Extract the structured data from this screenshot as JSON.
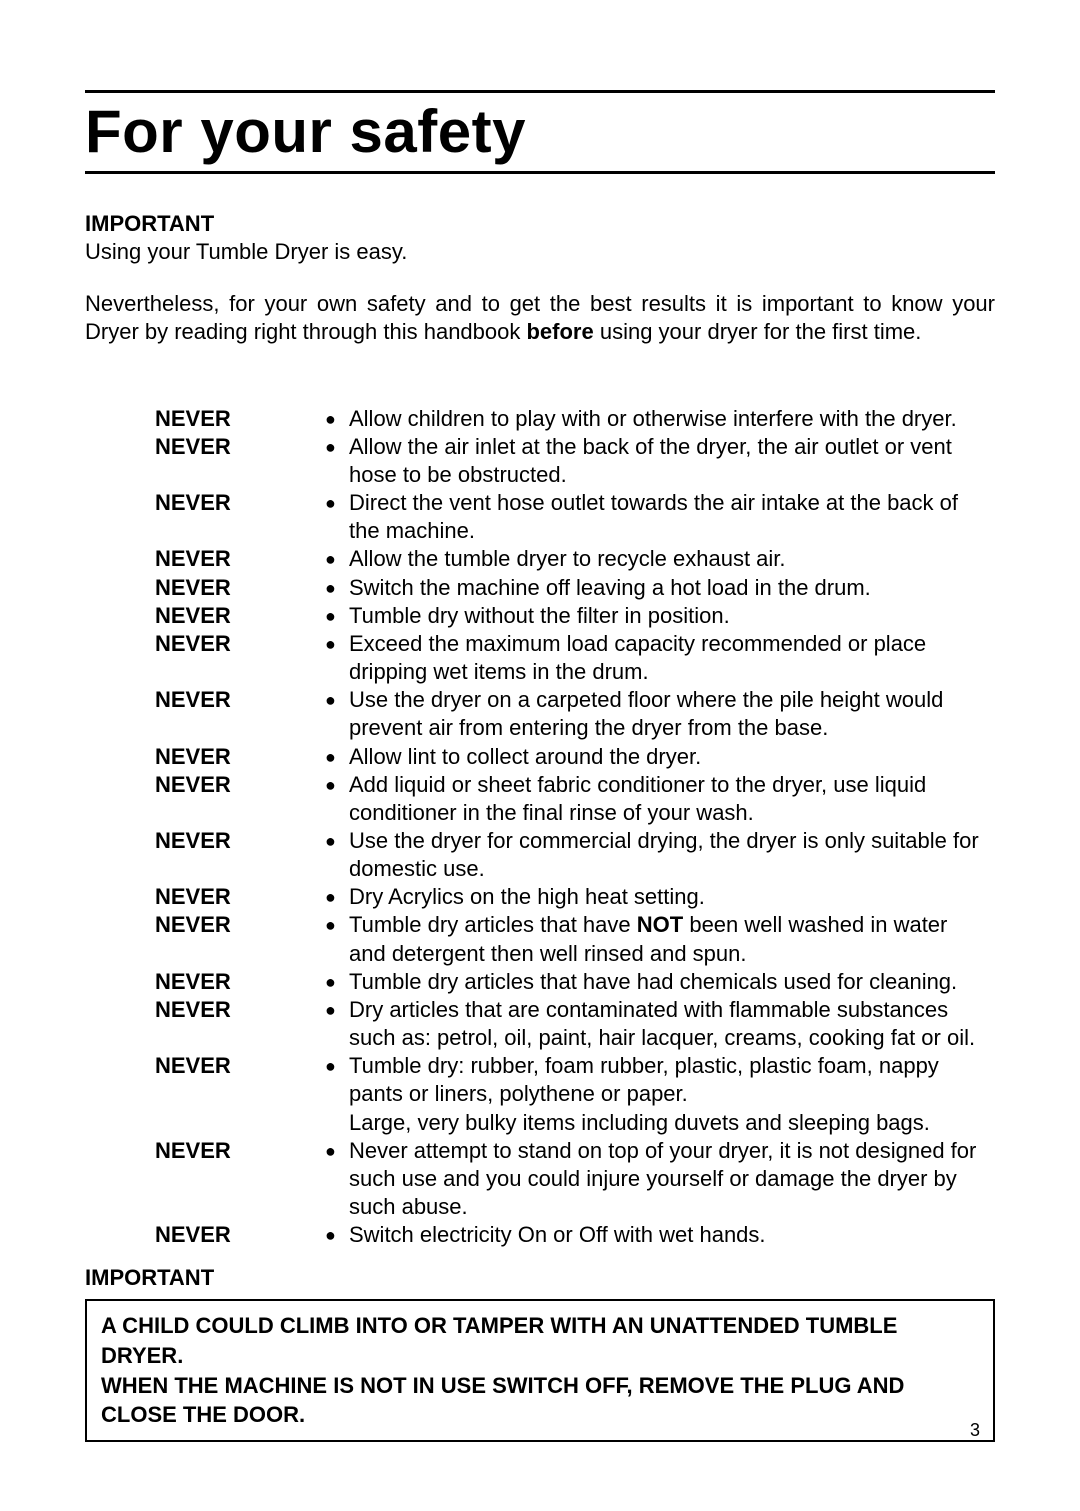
{
  "title": "For your safety",
  "intro": {
    "important_label": "IMPORTANT",
    "line1": "Using your Tumble Dryer is easy.",
    "nevertheless_pre": "Nevertheless, for your own safety and to get the best results it is important to know your Dryer by reading right through this handbook ",
    "before_bold": "before",
    "nevertheless_post": " using your dryer for the first time."
  },
  "never_label": "NEVER",
  "bullet_glyph": "●",
  "never_items": [
    {
      "text": "Allow children to play with or otherwise interfere with the dryer."
    },
    {
      "text": "Allow the air inlet at the back of the dryer, the air outlet or vent hose to be obstructed."
    },
    {
      "text": "Direct the vent hose outlet towards the air intake at the back of the machine."
    },
    {
      "text": "Allow the tumble dryer to recycle exhaust air."
    },
    {
      "text": "Switch the machine off leaving a hot load in the drum."
    },
    {
      "text": "Tumble dry without the filter in position."
    },
    {
      "text": "Exceed the maximum load capacity recommended or place dripping wet items in the drum."
    },
    {
      "text": "Use the dryer on a carpeted floor where the pile height would prevent air from entering the dryer from the base."
    },
    {
      "text": "Allow lint to collect around the dryer."
    },
    {
      "text": "Add liquid or sheet fabric conditioner to the dryer, use liquid conditioner in the final rinse of your wash."
    },
    {
      "text": "Use the dryer for commercial drying, the dryer is only suitable for domestic use."
    },
    {
      "text": "Dry Acrylics on the high heat setting."
    },
    {
      "pre": "Tumble dry articles that have ",
      "bold": "NOT",
      "post": " been well washed in water and detergent then well rinsed and spun."
    },
    {
      "text": "Tumble dry articles that have had chemicals used for cleaning."
    },
    {
      "text": "Dry articles that are contaminated with flammable substances such as: petrol, oil, paint, hair lacquer, creams, cooking fat or oil."
    },
    {
      "text": "Tumble dry: rubber, foam rubber, plastic, plastic foam, nappy pants or liners, polythene or paper.",
      "extra": "Large, very  bulky items including duvets and sleeping bags."
    },
    {
      "text": "Never attempt to stand on top of your dryer, it is not designed for such use and you could injure yourself or damage the dryer by such abuse."
    },
    {
      "text": "Switch electricity On or Off with wet hands."
    }
  ],
  "bottom_important": "IMPORTANT",
  "warning_box": {
    "line1": "A CHILD COULD CLIMB INTO OR TAMPER WITH AN UNATTENDED TUMBLE DRYER.",
    "line2": "WHEN THE MACHINE IS NOT IN USE SWITCH OFF, REMOVE THE PLUG AND CLOSE THE DOOR."
  },
  "page_number": "3"
}
